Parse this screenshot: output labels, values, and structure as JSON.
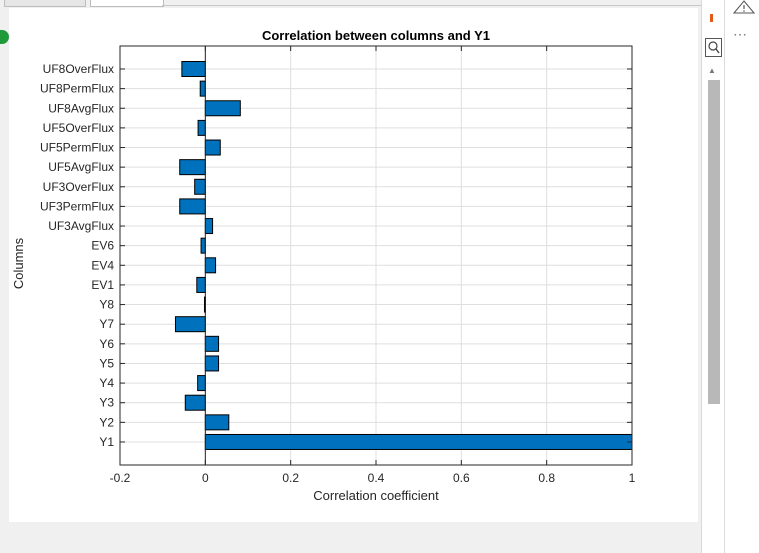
{
  "chart_data": {
    "type": "bar",
    "orientation": "horizontal",
    "title": "Correlation between columns and Y1",
    "xlabel": "Correlation coefficient",
    "ylabel": "Columns",
    "xlim": [
      -0.2,
      1
    ],
    "xticks": [
      -0.2,
      0,
      0.2,
      0.4,
      0.6,
      0.8,
      1
    ],
    "xtick_labels": [
      "-0.2",
      "0",
      "0.2",
      "0.4",
      "0.6",
      "0.8",
      "1"
    ],
    "grid": true,
    "categories": [
      "UF8OverFlux",
      "UF8PermFlux",
      "UF8AvgFlux",
      "UF5OverFlux",
      "UF5PermFlux",
      "UF5AvgFlux",
      "UF3OverFlux",
      "UF3PermFlux",
      "UF3AvgFlux",
      "EV6",
      "EV4",
      "EV1",
      "Y8",
      "Y7",
      "Y6",
      "Y5",
      "Y4",
      "Y3",
      "Y2",
      "Y1"
    ],
    "values": [
      -0.055,
      -0.012,
      0.082,
      -0.017,
      0.035,
      -0.06,
      -0.025,
      -0.06,
      0.017,
      -0.01,
      0.024,
      -0.02,
      -0.002,
      -0.07,
      0.031,
      0.031,
      -0.018,
      -0.047,
      0.055,
      1.0
    ],
    "bar_color": "#0072bd"
  }
}
